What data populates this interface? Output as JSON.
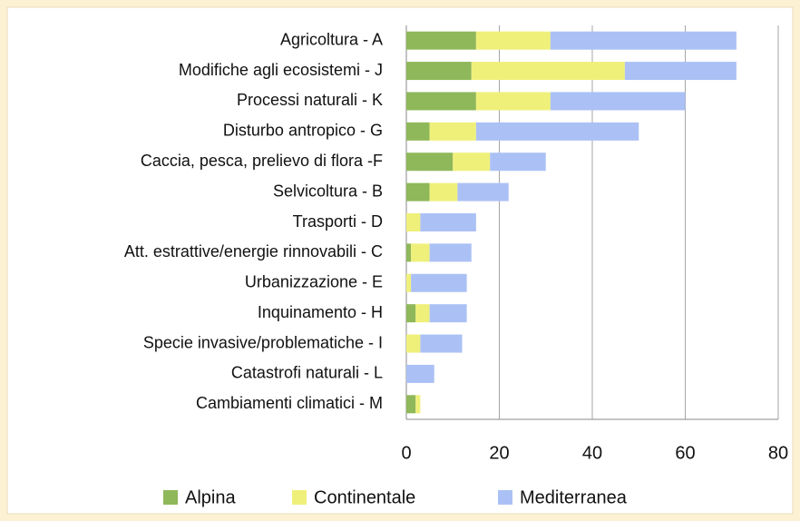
{
  "chart_data": {
    "type": "bar",
    "orientation": "horizontal",
    "stacked": true,
    "categories": [
      "Agricoltura - A",
      "Modifiche agli ecosistemi - J",
      "Processi naturali - K",
      "Disturbo antropico - G",
      "Caccia, pesca, prelievo di flora -F",
      "Selvicoltura - B",
      "Trasporti - D",
      "Att. estrattive/energie rinnovabili - C",
      "Urbanizzazione - E",
      "Inquinamento - H",
      "Specie invasive/problematiche - I",
      "Catastrofi naturali - L",
      "Cambiamenti climatici - M"
    ],
    "series": [
      {
        "name": "Alpina",
        "color": "#8fb85a",
        "values": [
          15,
          14,
          15,
          5,
          10,
          5,
          0,
          1,
          0,
          2,
          0,
          0,
          2
        ]
      },
      {
        "name": "Continentale",
        "color": "#eff07a",
        "values": [
          16,
          33,
          16,
          10,
          8,
          6,
          3,
          4,
          1,
          3,
          3,
          0,
          1
        ]
      },
      {
        "name": "Mediterranea",
        "color": "#abc1f5",
        "values": [
          40,
          24,
          29,
          35,
          12,
          11,
          12,
          9,
          12,
          8,
          9,
          6,
          0
        ]
      }
    ],
    "xlim": [
      0,
      80
    ],
    "xticks": [
      0,
      20,
      40,
      60,
      80
    ],
    "grid": true,
    "legend": "bottom"
  }
}
